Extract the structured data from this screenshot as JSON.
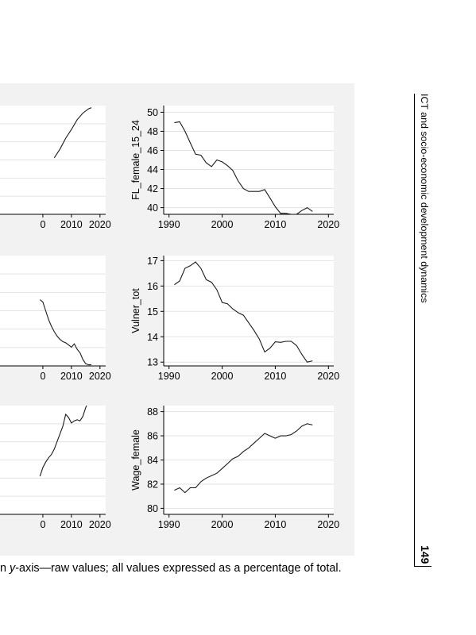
{
  "running_header": "ICT and socio-economic development dynamics",
  "page_number": "149",
  "caption": {
    "part1": "n ",
    "italic": "y",
    "part2": "-axis—raw values; all values expressed as a percentage of total."
  },
  "chart_data": [
    {
      "type": "line",
      "position": "top-left",
      "xlabel": "",
      "ylabel": "",
      "xlim": [
        1985,
        2022
      ],
      "xticks": [
        2010,
        2020
      ],
      "xtick_partial": "0",
      "ylim": [
        0,
        1
      ],
      "yticks": [],
      "series": [
        {
          "x": [
            2004,
            2006,
            2008,
            2010,
            2012,
            2014,
            2016,
            2017
          ],
          "y": [
            0.52,
            0.6,
            0.7,
            0.78,
            0.87,
            0.93,
            0.97,
            0.98
          ]
        }
      ]
    },
    {
      "type": "line",
      "position": "top-right",
      "xlabel": "",
      "ylabel": "FL_female_15_24",
      "xlim": [
        1989,
        2021
      ],
      "xticks": [
        1990,
        2000,
        2010,
        2020
      ],
      "ylim": [
        39.3,
        50.7
      ],
      "yticks": [
        40,
        42,
        44,
        46,
        48,
        50
      ],
      "series": [
        {
          "x": [
            1991,
            1992,
            1993,
            1994,
            1995,
            1996,
            1997,
            1998,
            1999,
            2000,
            2001,
            2002,
            2003,
            2004,
            2005,
            2006,
            2007,
            2008,
            2009,
            2010,
            2011,
            2012,
            2013,
            2014,
            2015,
            2016,
            2017
          ],
          "y": [
            48.9,
            49.0,
            48.0,
            46.8,
            45.6,
            45.5,
            44.7,
            44.3,
            45.0,
            44.8,
            44.4,
            43.9,
            42.8,
            42.0,
            41.7,
            41.7,
            41.7,
            41.9,
            41.0,
            40.1,
            39.4,
            39.4,
            39.3,
            39.3,
            39.7,
            40.0,
            39.6
          ]
        }
      ]
    },
    {
      "type": "line",
      "position": "middle-left",
      "xlabel": "",
      "ylabel": "",
      "xlim": [
        1985,
        2022
      ],
      "xticks": [
        2010,
        2020
      ],
      "xtick_partial": "0",
      "ylim": [
        0,
        1
      ],
      "yticks": [],
      "series": [
        {
          "x": [
            1999,
            2000,
            2001,
            2002,
            2003,
            2004,
            2005,
            2006,
            2007,
            2008,
            2009,
            2010,
            2011,
            2012,
            2013,
            2014,
            2015,
            2016,
            2017
          ],
          "y": [
            0.6,
            0.58,
            0.5,
            0.42,
            0.36,
            0.31,
            0.27,
            0.24,
            0.22,
            0.21,
            0.19,
            0.17,
            0.2,
            0.15,
            0.12,
            0.06,
            0.02,
            0.01,
            0.01
          ]
        }
      ]
    },
    {
      "type": "line",
      "position": "middle-right",
      "xlabel": "",
      "ylabel": "Vulner_tot",
      "xlim": [
        1989,
        2021
      ],
      "xticks": [
        1990,
        2000,
        2010,
        2020
      ],
      "ylim": [
        12.85,
        17.2
      ],
      "yticks": [
        13,
        14,
        15,
        16,
        17
      ],
      "series": [
        {
          "x": [
            1991,
            1992,
            1993,
            1994,
            1995,
            1996,
            1997,
            1998,
            1999,
            2000,
            2001,
            2002,
            2003,
            2004,
            2005,
            2006,
            2007,
            2008,
            2009,
            2010,
            2011,
            2012,
            2013,
            2014,
            2015,
            2016,
            2017
          ],
          "y": [
            16.05,
            16.2,
            16.7,
            16.8,
            16.95,
            16.7,
            16.25,
            16.15,
            15.85,
            15.35,
            15.3,
            15.1,
            14.95,
            14.85,
            14.55,
            14.25,
            13.9,
            13.4,
            13.55,
            13.8,
            13.78,
            13.82,
            13.82,
            13.65,
            13.3,
            13.0,
            13.05
          ]
        }
      ]
    },
    {
      "type": "line",
      "position": "bottom-left",
      "xlabel": "",
      "ylabel": "",
      "xlim": [
        1985,
        2022
      ],
      "xticks": [
        2010,
        2020
      ],
      "xtick_partial": "0",
      "ylim": [
        0,
        1
      ],
      "yticks": [],
      "series": [
        {
          "x": [
            1999,
            2000,
            2001,
            2002,
            2003,
            2004,
            2005,
            2006,
            2007,
            2008,
            2009,
            2010,
            2011,
            2012,
            2013,
            2014,
            2015,
            2016,
            2017
          ],
          "y": [
            0.35,
            0.43,
            0.48,
            0.52,
            0.55,
            0.6,
            0.67,
            0.74,
            0.81,
            0.92,
            0.89,
            0.84,
            0.86,
            0.87,
            0.86,
            0.9,
            0.98,
            1.04,
            1.02
          ]
        }
      ]
    },
    {
      "type": "line",
      "position": "bottom-right",
      "xlabel": "",
      "ylabel": "Wage_female",
      "xlim": [
        1989,
        2021
      ],
      "xticks": [
        1990,
        2000,
        2010,
        2020
      ],
      "ylim": [
        79.5,
        88.5
      ],
      "yticks": [
        80,
        82,
        84,
        86,
        88
      ],
      "series": [
        {
          "x": [
            1991,
            1992,
            1993,
            1994,
            1995,
            1996,
            1997,
            1998,
            1999,
            2000,
            2001,
            2002,
            2003,
            2004,
            2005,
            2006,
            2007,
            2008,
            2009,
            2010,
            2011,
            2012,
            2013,
            2014,
            2015,
            2016,
            2017
          ],
          "y": [
            81.5,
            81.7,
            81.3,
            81.7,
            81.7,
            82.2,
            82.5,
            82.7,
            82.9,
            83.3,
            83.7,
            84.1,
            84.3,
            84.7,
            85.0,
            85.4,
            85.8,
            86.2,
            86.0,
            85.8,
            86.0,
            86.0,
            86.1,
            86.4,
            86.8,
            87.0,
            86.9
          ]
        }
      ]
    }
  ]
}
